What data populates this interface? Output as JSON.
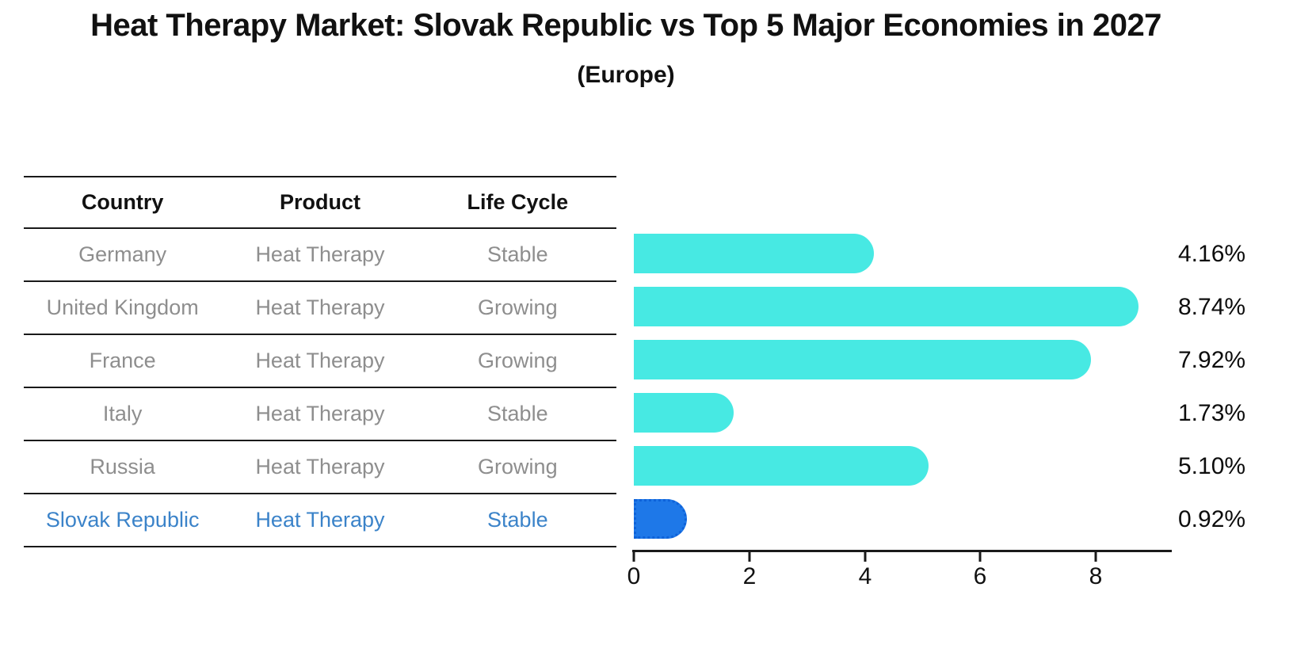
{
  "title": "Heat Therapy Market: Slovak Republic vs Top 5 Major Economies in 2027",
  "subtitle": "(Europe)",
  "table": {
    "headers": {
      "country": "Country",
      "product": "Product",
      "life_cycle": "Life Cycle"
    },
    "rows": [
      {
        "country": "Germany",
        "product": "Heat Therapy",
        "life_cycle": "Stable"
      },
      {
        "country": "United Kingdom",
        "product": "Heat Therapy",
        "life_cycle": "Growing"
      },
      {
        "country": "France",
        "product": "Heat Therapy",
        "life_cycle": "Growing"
      },
      {
        "country": "Italy",
        "product": "Heat Therapy",
        "life_cycle": "Stable"
      },
      {
        "country": "Russia",
        "product": "Heat Therapy",
        "life_cycle": "Growing"
      },
      {
        "country": "Slovak Republic",
        "product": "Heat Therapy",
        "life_cycle": "Stable"
      }
    ],
    "highlighted_row": "Slovak Republic"
  },
  "chart_data": {
    "type": "bar",
    "orientation": "horizontal",
    "title": "Heat Therapy Market: Slovak Republic vs Top 5 Major Economies in 2027",
    "subtitle": "(Europe)",
    "categories": [
      "Germany",
      "United Kingdom",
      "France",
      "Italy",
      "Russia",
      "Slovak Republic"
    ],
    "values": [
      4.16,
      8.74,
      7.92,
      1.73,
      5.1,
      0.92
    ],
    "value_labels": [
      "4.16%",
      "8.74%",
      "7.92%",
      "1.73%",
      "5.10%",
      "0.92%"
    ],
    "unit": "%",
    "x_ticks": [
      0,
      2,
      4,
      6,
      8
    ],
    "x_tick_labels": [
      "0",
      "2",
      "4",
      "6",
      "8"
    ],
    "xlim": [
      0,
      9.3
    ],
    "grid": false,
    "legend": false,
    "bar_color": "#47E9E3",
    "highlight_color": "#1E78E8",
    "highlight_border_color": "#0E62D9",
    "highlight_index": 5
  },
  "colors": {
    "background": "#FFFFFF",
    "title_text": "#111111",
    "table_text": "#8E8E8E",
    "header_text": "#111111",
    "highlight_text": "#3B83C9",
    "axis_line": "#1A1A1A"
  }
}
